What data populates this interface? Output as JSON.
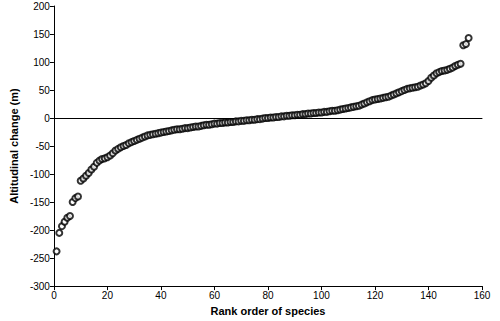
{
  "chart_data": {
    "type": "scatter",
    "x_label": "Rank order of species",
    "y_label": "Altitudinal change (m)",
    "x": [
      1,
      2,
      3,
      4,
      5,
      6,
      7,
      8,
      9,
      10,
      11,
      12,
      13,
      14,
      15,
      16,
      17,
      18,
      19,
      20,
      21,
      22,
      23,
      24,
      25,
      26,
      27,
      28,
      29,
      30,
      31,
      32,
      33,
      34,
      35,
      36,
      37,
      38,
      39,
      40,
      41,
      42,
      43,
      44,
      45,
      46,
      47,
      48,
      49,
      50,
      51,
      52,
      53,
      54,
      55,
      56,
      57,
      58,
      59,
      60,
      61,
      62,
      63,
      64,
      65,
      66,
      67,
      68,
      69,
      70,
      71,
      72,
      73,
      74,
      75,
      76,
      77,
      78,
      79,
      80,
      81,
      82,
      83,
      84,
      85,
      86,
      87,
      88,
      89,
      90,
      91,
      92,
      93,
      94,
      95,
      96,
      97,
      98,
      99,
      100,
      101,
      102,
      103,
      104,
      105,
      106,
      107,
      108,
      109,
      110,
      111,
      112,
      113,
      114,
      115,
      116,
      117,
      118,
      119,
      120,
      121,
      122,
      123,
      124,
      125,
      126,
      127,
      128,
      129,
      130,
      131,
      132,
      133,
      134,
      135,
      136,
      137,
      138,
      139,
      140,
      141,
      142,
      143,
      144,
      145,
      146,
      147,
      148,
      149,
      150,
      151,
      152,
      153,
      154,
      155
    ],
    "values": [
      -238,
      -205,
      -193,
      -185,
      -178,
      -175,
      -150,
      -143,
      -140,
      -112,
      -108,
      -103,
      -98,
      -92,
      -87,
      -80,
      -76,
      -73,
      -72,
      -70,
      -67,
      -63,
      -58,
      -55,
      -52,
      -50,
      -48,
      -45,
      -43,
      -41,
      -39,
      -37,
      -35,
      -33,
      -31,
      -30,
      -29,
      -28,
      -27,
      -26,
      -25,
      -24,
      -23,
      -22,
      -21,
      -20,
      -20,
      -19,
      -18,
      -18,
      -17,
      -16,
      -15,
      -15,
      -14,
      -13,
      -12,
      -12,
      -11,
      -10,
      -10,
      -9,
      -9,
      -8,
      -8,
      -7,
      -7,
      -6,
      -6,
      -5,
      -5,
      -4,
      -4,
      -3,
      -3,
      -2,
      -2,
      -1,
      0,
      0,
      1,
      1,
      2,
      2,
      3,
      3,
      4,
      4,
      5,
      5,
      6,
      6,
      7,
      7,
      8,
      8,
      9,
      9,
      10,
      10,
      11,
      11,
      12,
      13,
      13,
      14,
      15,
      16,
      17,
      18,
      19,
      20,
      21,
      22,
      24,
      26,
      28,
      30,
      32,
      33,
      34,
      35,
      36,
      37,
      38,
      40,
      42,
      44,
      46,
      48,
      50,
      52,
      53,
      54,
      55,
      56,
      58,
      60,
      62,
      66,
      72,
      76,
      80,
      82,
      84,
      85,
      86,
      88,
      90,
      93,
      95,
      97,
      130,
      132,
      143
    ],
    "color": "#000000",
    "marker": "open_circle",
    "xlim": [
      0,
      160
    ],
    "xticks": [
      0,
      20,
      40,
      60,
      80,
      100,
      120,
      140,
      160
    ],
    "ylim": [
      -300,
      200
    ],
    "yticks": [
      -300,
      -250,
      -200,
      -150,
      -100,
      -50,
      0,
      50,
      100,
      150,
      200
    ],
    "grid": false
  }
}
